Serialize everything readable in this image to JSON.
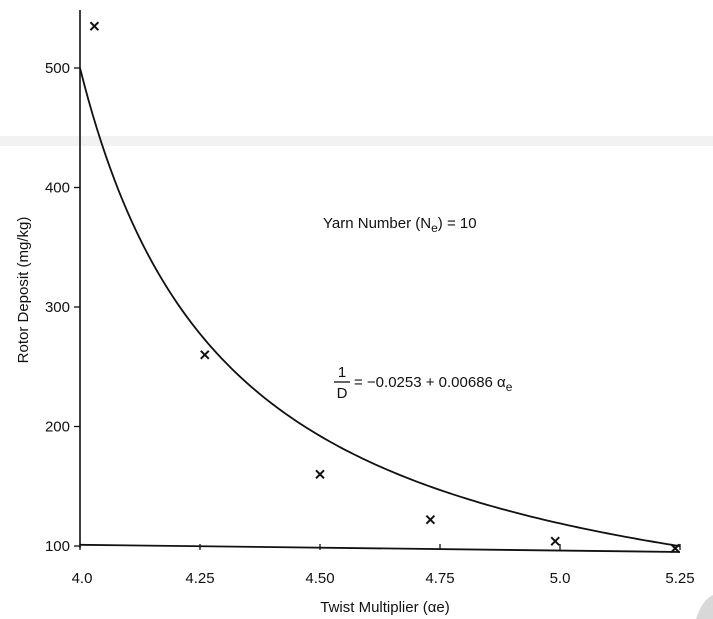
{
  "chart_data": {
    "type": "scatter",
    "title": "",
    "xlabel": "Twist Multiplier (αe)",
    "ylabel": "Rotor Deposit (mg/kg)",
    "xlim": [
      4.0,
      5.25
    ],
    "ylim": [
      100,
      550
    ],
    "x_ticks": [
      4.0,
      4.25,
      4.5,
      4.75,
      5.0,
      5.25
    ],
    "x_tick_labels": [
      "4.0",
      "4.25",
      "4.50",
      "4.75",
      "5.0",
      "5.25"
    ],
    "y_ticks": [
      100,
      200,
      300,
      400,
      500
    ],
    "y_tick_labels": [
      "100",
      "200",
      "300",
      "400",
      "500"
    ],
    "grid": false,
    "series": [
      {
        "kind": "points",
        "marker": "x",
        "x": [
          4.03,
          4.26,
          4.5,
          4.73,
          4.99,
          5.24
        ],
        "y": [
          535,
          260,
          160,
          122,
          104,
          98
        ]
      },
      {
        "kind": "fitted-curve",
        "equation": {
          "intercept": -0.0253,
          "slope": 0.00686
        },
        "x_range": [
          4.0,
          5.25
        ]
      },
      {
        "kind": "straight-line",
        "x": [
          4.0,
          5.25
        ],
        "y": [
          101,
          95
        ]
      }
    ],
    "annotations": {
      "yarn_number": {
        "prefix": "Yarn Number (N",
        "subscript": "e",
        "suffix": ") = 10"
      },
      "equation": {
        "numerator": "1",
        "denominator": "D",
        "rhs": "= −0.0253 + 0.00686 α",
        "rhs_subscript": "e"
      }
    }
  }
}
